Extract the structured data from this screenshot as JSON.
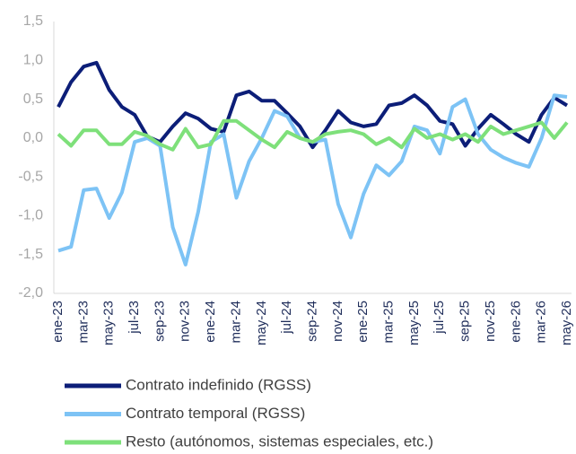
{
  "chart_data": {
    "type": "line",
    "categories": [
      "ene-23",
      null,
      "mar-23",
      null,
      "may-23",
      null,
      "jul-23",
      null,
      "sep-23",
      null,
      "nov-23",
      null,
      "ene-24",
      null,
      "mar-24",
      null,
      "may-24",
      null,
      "jul-24",
      null,
      "sep-24",
      null,
      "nov-24",
      null,
      "ene-25",
      null,
      "mar-25",
      null,
      "may-25",
      null,
      "jul-25",
      null,
      "sep-25",
      null,
      "nov-25",
      null,
      "ene-26",
      null,
      "mar-26",
      null,
      "may-26"
    ],
    "series": [
      {
        "name": "Contrato indefinido (RGSS)",
        "color": "#0c1e78",
        "values": [
          0.4,
          0.72,
          0.92,
          0.97,
          0.62,
          0.4,
          0.3,
          0.02,
          -0.05,
          0.15,
          0.32,
          0.25,
          0.12,
          0.08,
          0.55,
          0.6,
          0.48,
          0.48,
          0.32,
          0.15,
          -0.12,
          0.1,
          0.35,
          0.2,
          0.15,
          0.18,
          0.42,
          0.45,
          0.55,
          0.42,
          0.22,
          0.18,
          -0.1,
          0.12,
          0.3,
          0.18,
          0.05,
          -0.05,
          0.3,
          0.52,
          0.42
        ]
      },
      {
        "name": "Contrato temporal (RGSS)",
        "color": "#7dc3f5",
        "values": [
          -1.45,
          -1.4,
          -0.67,
          -0.65,
          -1.03,
          -0.7,
          -0.05,
          0.0,
          -0.1,
          -1.15,
          -1.63,
          -0.95,
          -0.05,
          0.05,
          -0.77,
          -0.3,
          0.0,
          0.35,
          0.28,
          0.0,
          -0.05,
          -0.02,
          -0.85,
          -1.28,
          -0.72,
          -0.35,
          -0.48,
          -0.3,
          0.15,
          0.1,
          -0.2,
          0.4,
          0.5,
          0.05,
          -0.15,
          -0.25,
          -0.32,
          -0.37,
          0.0,
          0.55,
          0.53
        ]
      },
      {
        "name": "Resto (autónomos, sistemas especiales, etc.)",
        "color": "#7ee07a",
        "values": [
          0.05,
          -0.1,
          0.1,
          0.1,
          -0.08,
          -0.08,
          0.08,
          0.03,
          -0.08,
          -0.15,
          0.12,
          -0.12,
          -0.08,
          0.22,
          0.22,
          0.1,
          -0.02,
          -0.12,
          0.08,
          0.0,
          -0.05,
          0.05,
          0.08,
          0.1,
          0.05,
          -0.08,
          0.0,
          -0.12,
          0.12,
          0.0,
          0.05,
          -0.02,
          0.05,
          -0.05,
          0.15,
          0.05,
          0.1,
          0.15,
          0.2,
          0.0,
          0.2
        ]
      }
    ],
    "ylim": [
      -2,
      1.5
    ],
    "yticks": [
      {
        "value": 1.5,
        "label": "1,5"
      },
      {
        "value": 1,
        "label": "1,0"
      },
      {
        "value": 0.5,
        "label": "0,5"
      },
      {
        "value": 0,
        "label": "0,0"
      },
      {
        "value": -0.5,
        "label": "-0,5"
      },
      {
        "value": -1,
        "label": "-1,0"
      },
      {
        "value": -1.5,
        "label": "-1,5"
      },
      {
        "value": -2,
        "label": "-2,0"
      }
    ],
    "grid": false
  }
}
